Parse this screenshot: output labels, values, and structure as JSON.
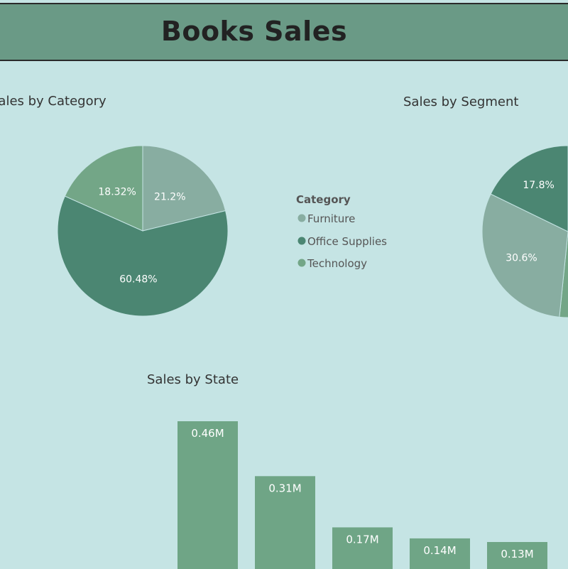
{
  "header": {
    "title": "Books Sales"
  },
  "colors": {
    "background": "#c5e4e4",
    "header": "#6a9a86",
    "furniture": "#88ada1",
    "office_supplies": "#4b8672",
    "technology": "#73a687",
    "bars": "#6fa586"
  },
  "chart_data": [
    {
      "type": "pie",
      "title": "Sales by Category",
      "legend": {
        "title": "Category",
        "placement": "right",
        "entries": [
          "Furniture",
          "Office Supplies",
          "Technology"
        ]
      },
      "slices": [
        {
          "name": "Furniture",
          "value": 21.2,
          "label": "21.2%",
          "color": "#88ada1"
        },
        {
          "name": "Office Supplies",
          "value": 60.48,
          "label": "60.48%",
          "color": "#4b8672"
        },
        {
          "name": "Technology",
          "value": 18.32,
          "label": "18.32%",
          "color": "#73a687"
        }
      ]
    },
    {
      "type": "pie",
      "title": "Sales by Segment",
      "slices": [
        {
          "value": 51.6,
          "label": "",
          "color": "#73a687"
        },
        {
          "value": 30.6,
          "label": "30.6%",
          "color": "#88ada1"
        },
        {
          "value": 17.8,
          "label": "17.8%",
          "color": "#4b8672"
        }
      ]
    },
    {
      "type": "bar",
      "title": "Sales by State",
      "values": [
        0.46,
        0.31,
        0.17,
        0.14,
        0.13
      ],
      "labels": [
        "0.46M",
        "0.31M",
        "0.17M",
        "0.14M",
        "0.13M"
      ],
      "color": "#6fa586"
    }
  ]
}
